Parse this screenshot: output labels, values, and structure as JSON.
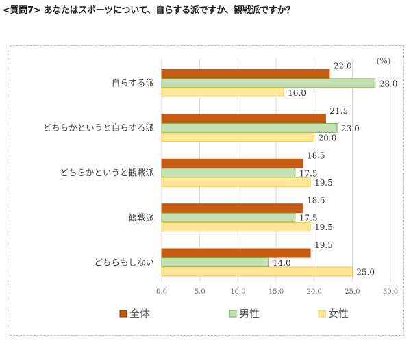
{
  "title": "<質問7> あなたはスポーツについて、自らする派ですか、観戦派ですか？",
  "chart_data": {
    "type": "bar",
    "orientation": "horizontal",
    "unit_label": "(%)",
    "categories": [
      "自らする派",
      "どちらかというと自らする派",
      "どちらかというと観戦派",
      "観戦派",
      "どちらもしない"
    ],
    "series": [
      {
        "name": "全体",
        "color": "#c55a11",
        "values": [
          22.0,
          21.5,
          18.5,
          18.5,
          19.5
        ]
      },
      {
        "name": "男性",
        "color": "#c5e0b4",
        "stroke": "#70ad47",
        "values": [
          28.0,
          23.0,
          17.5,
          17.5,
          14.0
        ]
      },
      {
        "name": "女性",
        "color": "#ffe699",
        "stroke": "#f4c842",
        "values": [
          16.0,
          20.0,
          19.5,
          19.5,
          25.0
        ]
      }
    ],
    "xlim": [
      0,
      30
    ],
    "xticks": [
      "0.0",
      "5.0",
      "10.0",
      "15.0",
      "20.0",
      "25.0",
      "30.0"
    ],
    "grid": true,
    "legend": "bottom"
  }
}
